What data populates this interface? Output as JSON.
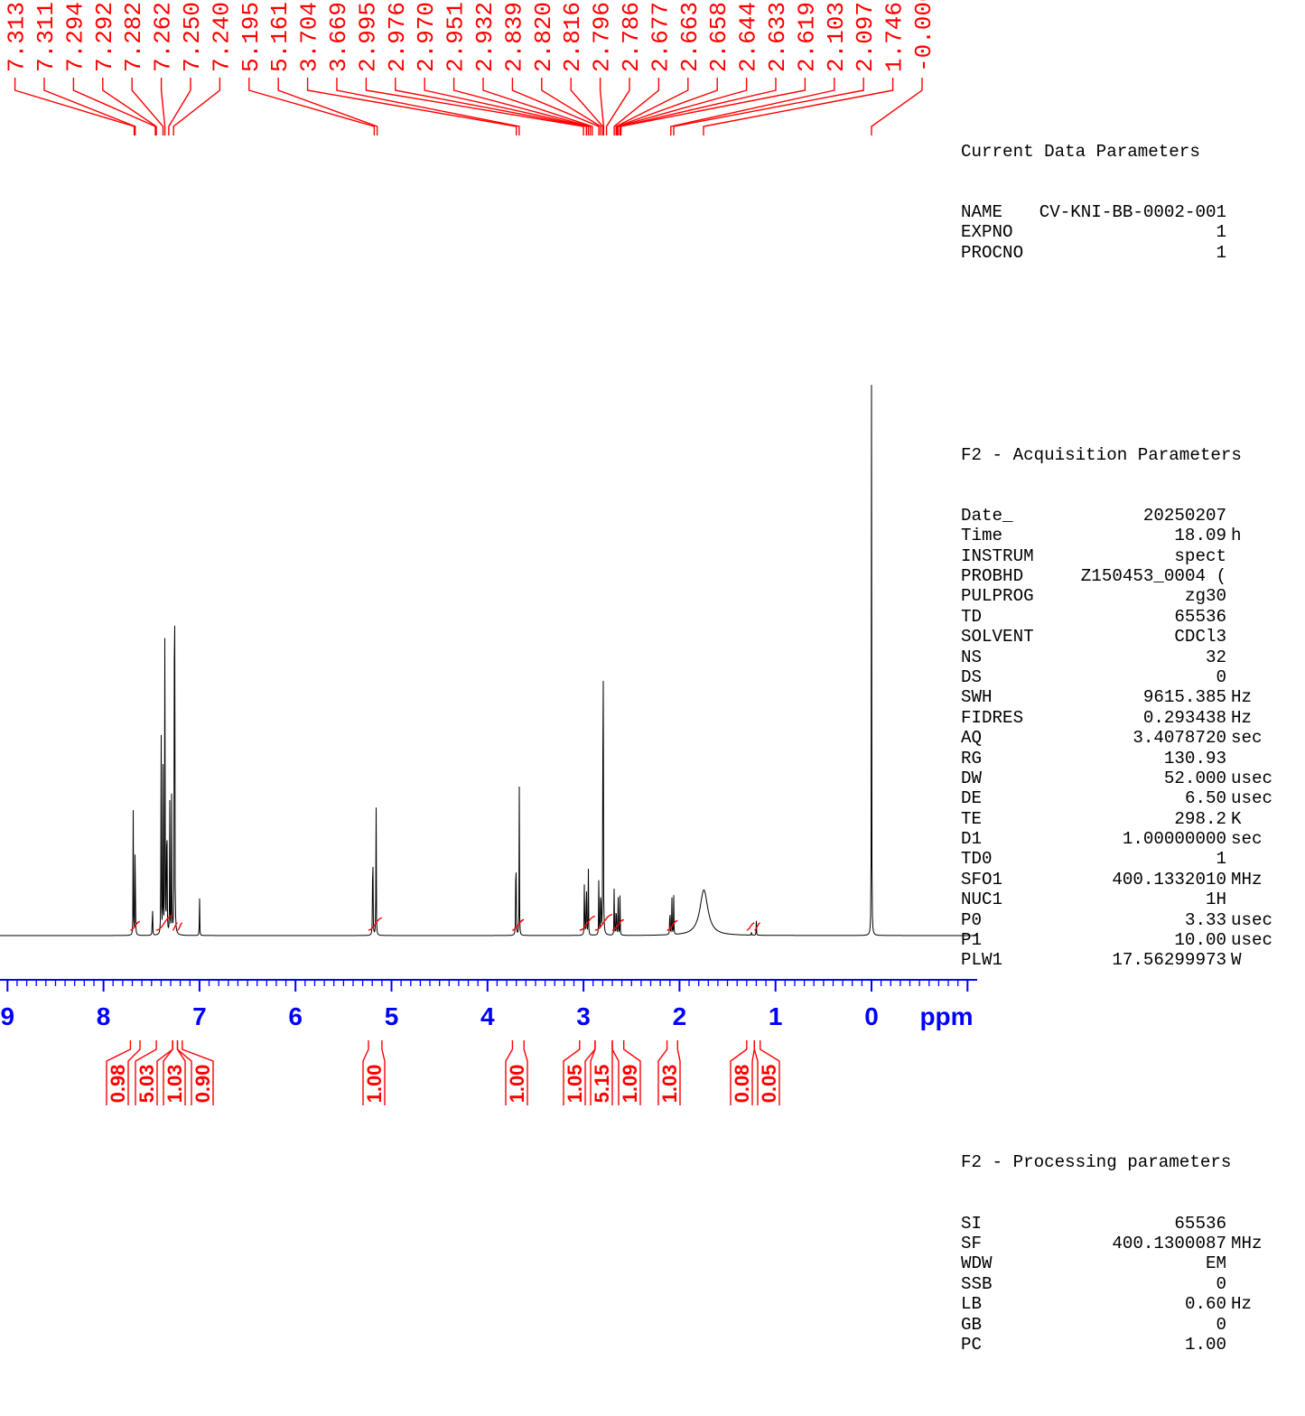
{
  "chart_data": {
    "type": "line",
    "title": "",
    "xlabel": "ppm",
    "ylabel": "",
    "xlim": [
      9.0,
      -1.1
    ],
    "x_direction": "reversed",
    "x_ticks": [
      "9",
      "8",
      "7",
      "6",
      "5",
      "4",
      "3",
      "2",
      "1",
      "0"
    ],
    "x_tick_values": [
      9,
      8,
      7,
      6,
      5,
      4,
      3,
      2,
      1,
      0
    ],
    "peak_labels": [
      "7.313",
      "7.311",
      "7.294",
      "7.292",
      "7.282",
      "7.262",
      "7.250",
      "7.240",
      "5.195",
      "5.161",
      "3.704",
      "3.669",
      "2.995",
      "2.976",
      "2.970",
      "2.951",
      "2.932",
      "2.839",
      "2.820",
      "2.816",
      "2.796",
      "2.786",
      "2.677",
      "2.663",
      "2.658",
      "2.644",
      "2.633",
      "2.619",
      "2.103",
      "2.097",
      "1.746",
      "-0.000"
    ],
    "peak_label_positions_ppm": [
      7.68,
      7.67,
      7.46,
      7.45,
      7.38,
      7.36,
      7.32,
      7.27,
      5.18,
      5.15,
      3.7,
      3.67,
      3.0,
      2.97,
      2.95,
      2.93,
      2.91,
      2.84,
      2.82,
      2.8,
      2.79,
      2.76,
      2.68,
      2.66,
      2.65,
      2.64,
      2.62,
      2.61,
      2.09,
      2.06,
      1.75,
      0.0
    ],
    "peaks": [
      {
        "ppm": 7.67,
        "height": 0.19
      },
      {
        "ppm": 7.69,
        "height": 0.17
      },
      {
        "ppm": 7.49,
        "height": 0.06
      },
      {
        "ppm": 7.4,
        "height": 0.35
      },
      {
        "ppm": 7.38,
        "height": 0.21
      },
      {
        "ppm": 7.36,
        "height": 0.55
      },
      {
        "ppm": 7.34,
        "height": 0.3
      },
      {
        "ppm": 7.31,
        "height": 0.18
      },
      {
        "ppm": 7.29,
        "height": 0.2
      },
      {
        "ppm": 7.26,
        "height": 1.0
      },
      {
        "ppm": 7.0,
        "height": 0.06
      },
      {
        "ppm": 5.195,
        "height": 0.21
      },
      {
        "ppm": 5.161,
        "height": 0.22
      },
      {
        "ppm": 3.704,
        "height": 0.2
      },
      {
        "ppm": 3.669,
        "height": 0.19
      },
      {
        "ppm": 2.99,
        "height": 0.11
      },
      {
        "ppm": 2.97,
        "height": 0.12
      },
      {
        "ppm": 2.95,
        "height": 0.1
      },
      {
        "ppm": 2.84,
        "height": 0.09
      },
      {
        "ppm": 2.82,
        "height": 0.11
      },
      {
        "ppm": 2.796,
        "height": 0.73
      },
      {
        "ppm": 2.68,
        "height": 0.08
      },
      {
        "ppm": 2.66,
        "height": 0.07
      },
      {
        "ppm": 2.64,
        "height": 0.07
      },
      {
        "ppm": 2.62,
        "height": 0.05
      },
      {
        "ppm": 2.1,
        "height": 0.06
      },
      {
        "ppm": 2.08,
        "height": 0.06
      },
      {
        "ppm": 2.06,
        "height": 0.05
      },
      {
        "ppm": 1.746,
        "height": 0.058,
        "width": 0.05
      },
      {
        "ppm": 1.25,
        "height": 0.005
      },
      {
        "ppm": 1.2,
        "height": 0.02
      },
      {
        "ppm": 0.0,
        "height": 0.7
      }
    ],
    "integrals": [
      {
        "from": 7.72,
        "to": 7.62,
        "value": "0.98"
      },
      {
        "from": 7.45,
        "to": 7.28,
        "value": "5.03"
      },
      {
        "from": 7.28,
        "to": 7.23,
        "value": "1.03"
      },
      {
        "from": 7.23,
        "to": 7.18,
        "value": "0.90"
      },
      {
        "from": 5.24,
        "to": 5.1,
        "value": "1.00"
      },
      {
        "from": 3.74,
        "to": 3.62,
        "value": "1.00"
      },
      {
        "from": 3.04,
        "to": 2.88,
        "value": "1.05"
      },
      {
        "from": 2.88,
        "to": 2.7,
        "value": "5.15"
      },
      {
        "from": 2.7,
        "to": 2.58,
        "value": "1.09"
      },
      {
        "from": 2.13,
        "to": 2.02,
        "value": "1.03"
      },
      {
        "from": 1.3,
        "to": 1.22,
        "value": "0.08"
      },
      {
        "from": 1.22,
        "to": 1.16,
        "value": "0.05"
      }
    ],
    "colors": {
      "spectrum": "#000000",
      "annotation": "#ff0000",
      "axis": "#0000ff"
    }
  },
  "parameters": {
    "current": {
      "title": "Current Data Parameters",
      "rows": [
        {
          "name": "NAME",
          "value": "CV-KNI-BB-0002-001",
          "unit": ""
        },
        {
          "name": "EXPNO",
          "value": "1",
          "unit": ""
        },
        {
          "name": "PROCNO",
          "value": "1",
          "unit": ""
        }
      ]
    },
    "acquisition": {
      "title": "F2 - Acquisition Parameters",
      "rows": [
        {
          "name": "Date_",
          "value": "20250207",
          "unit": ""
        },
        {
          "name": "Time",
          "value": "18.09",
          "unit": "h"
        },
        {
          "name": "INSTRUM",
          "value": "spect",
          "unit": ""
        },
        {
          "name": "PROBHD",
          "value": "Z150453_0004 (",
          "unit": ""
        },
        {
          "name": "PULPROG",
          "value": "zg30",
          "unit": ""
        },
        {
          "name": "TD",
          "value": "65536",
          "unit": ""
        },
        {
          "name": "SOLVENT",
          "value": "CDCl3",
          "unit": ""
        },
        {
          "name": "NS",
          "value": "32",
          "unit": ""
        },
        {
          "name": "DS",
          "value": "0",
          "unit": ""
        },
        {
          "name": "SWH",
          "value": "9615.385",
          "unit": "Hz"
        },
        {
          "name": "FIDRES",
          "value": "0.293438",
          "unit": "Hz"
        },
        {
          "name": "AQ",
          "value": "3.4078720",
          "unit": "sec"
        },
        {
          "name": "RG",
          "value": "130.93",
          "unit": ""
        },
        {
          "name": "DW",
          "value": "52.000",
          "unit": "usec"
        },
        {
          "name": "DE",
          "value": "6.50",
          "unit": "usec"
        },
        {
          "name": "TE",
          "value": "298.2",
          "unit": "K"
        },
        {
          "name": "D1",
          "value": "1.00000000",
          "unit": "sec"
        },
        {
          "name": "TD0",
          "value": "1",
          "unit": ""
        },
        {
          "name": "SFO1",
          "value": "400.1332010",
          "unit": "MHz"
        },
        {
          "name": "NUC1",
          "value": "1H",
          "unit": ""
        },
        {
          "name": "P0",
          "value": "3.33",
          "unit": "usec"
        },
        {
          "name": "P1",
          "value": "10.00",
          "unit": "usec"
        },
        {
          "name": "PLW1",
          "value": "17.56299973",
          "unit": "W"
        }
      ]
    },
    "processing": {
      "title": "F2 - Processing parameters",
      "rows": [
        {
          "name": "SI",
          "value": "65536",
          "unit": ""
        },
        {
          "name": "SF",
          "value": "400.1300087",
          "unit": "MHz"
        },
        {
          "name": "WDW",
          "value": "EM",
          "unit": ""
        },
        {
          "name": "SSB",
          "value": "0",
          "unit": ""
        },
        {
          "name": "LB",
          "value": "0.60",
          "unit": "Hz"
        },
        {
          "name": "GB",
          "value": "0",
          "unit": ""
        },
        {
          "name": "PC",
          "value": "1.00",
          "unit": ""
        }
      ]
    }
  }
}
